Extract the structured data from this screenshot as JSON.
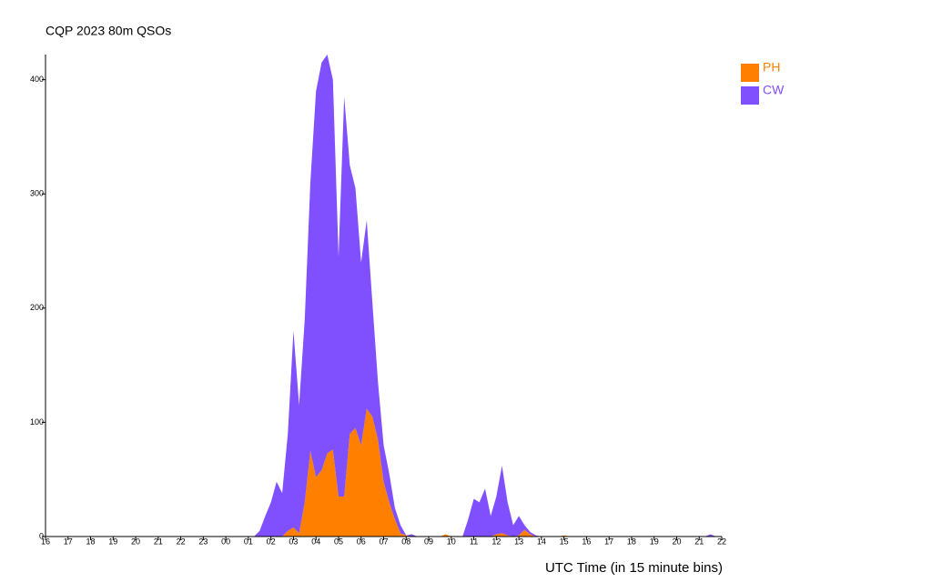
{
  "chart_data": {
    "type": "stacked_area",
    "title": "CQP 2023 80m QSOs",
    "x_label": "UTC Time (in 15 minute bins)",
    "categories": [
      "16",
      null,
      null,
      null,
      "17",
      null,
      null,
      null,
      "18",
      null,
      null,
      null,
      "19",
      null,
      null,
      null,
      "20",
      null,
      null,
      null,
      "21",
      null,
      null,
      null,
      "22",
      null,
      null,
      null,
      "23",
      null,
      null,
      null,
      "00",
      null,
      null,
      null,
      "01",
      null,
      null,
      null,
      "02",
      null,
      null,
      null,
      "03",
      null,
      null,
      null,
      "04",
      null,
      null,
      null,
      "05",
      null,
      null,
      null,
      "06",
      null,
      null,
      null,
      "07",
      null,
      null,
      null,
      "08",
      null,
      null,
      null,
      "09",
      null,
      null,
      null,
      "10",
      null,
      null,
      null,
      "11",
      null,
      null,
      null,
      "12",
      null,
      null,
      null,
      "13",
      null,
      null,
      null,
      "14",
      null,
      null,
      null,
      "15",
      null,
      null,
      null,
      "16",
      null,
      null,
      null,
      "17",
      null,
      null,
      null,
      "18",
      null,
      null,
      null,
      "19",
      null,
      null,
      null,
      "20",
      null,
      null,
      null,
      "21",
      null,
      null,
      null,
      "22"
    ],
    "series": [
      {
        "name": "PH",
        "color": "#ff8000",
        "values": [
          0,
          0,
          0,
          0,
          0,
          0,
          0,
          0,
          0,
          0,
          0,
          0,
          0,
          0,
          0,
          0,
          0,
          0,
          0,
          0,
          0,
          0,
          0,
          0,
          0,
          0,
          0,
          0,
          0,
          0,
          0,
          0,
          0,
          0,
          0,
          0,
          0,
          0,
          0,
          0,
          0,
          0,
          0,
          5,
          8,
          3,
          30,
          75,
          52,
          58,
          73,
          76,
          35,
          35,
          90,
          95,
          80,
          112,
          105,
          85,
          48,
          30,
          15,
          3,
          1,
          0,
          0,
          0,
          0,
          0,
          0,
          2,
          0,
          0,
          0,
          0,
          0,
          0,
          0,
          0,
          2,
          3,
          1,
          0,
          1,
          6,
          2,
          0,
          0,
          0,
          0,
          0,
          1,
          0,
          0,
          0,
          0,
          0,
          0,
          0,
          0,
          0,
          0,
          0,
          0,
          0,
          0,
          0,
          0,
          0,
          0,
          0,
          0,
          0,
          0,
          0,
          0,
          0,
          0,
          0,
          0
        ]
      },
      {
        "name": "CW",
        "color": "#8050ff",
        "values": [
          0,
          0,
          0,
          0,
          0,
          0,
          0,
          0,
          0,
          0,
          0,
          0,
          0,
          0,
          0,
          0,
          0,
          0,
          0,
          0,
          0,
          0,
          0,
          0,
          0,
          0,
          0,
          0,
          0,
          0,
          0,
          0,
          0,
          0,
          0,
          0,
          0,
          0,
          5,
          18,
          30,
          48,
          38,
          85,
          172,
          112,
          160,
          235,
          338,
          357,
          349,
          324,
          210,
          350,
          235,
          210,
          160,
          165,
          100,
          50,
          32,
          25,
          10,
          7,
          0,
          2,
          0,
          0,
          0,
          0,
          0,
          0,
          0,
          0,
          0,
          15,
          33,
          30,
          42,
          18,
          33,
          59,
          29,
          10,
          17,
          4,
          2,
          1,
          0,
          0,
          0,
          0,
          0,
          0,
          0,
          0,
          0,
          0,
          0,
          0,
          0,
          0,
          0,
          0,
          0,
          0,
          0,
          0,
          0,
          0,
          0,
          0,
          0,
          0,
          0,
          0,
          0,
          0,
          2,
          0,
          0
        ]
      }
    ],
    "ylim": [
      0,
      422
    ],
    "yticks": [
      0,
      100,
      200,
      300,
      400
    ]
  }
}
